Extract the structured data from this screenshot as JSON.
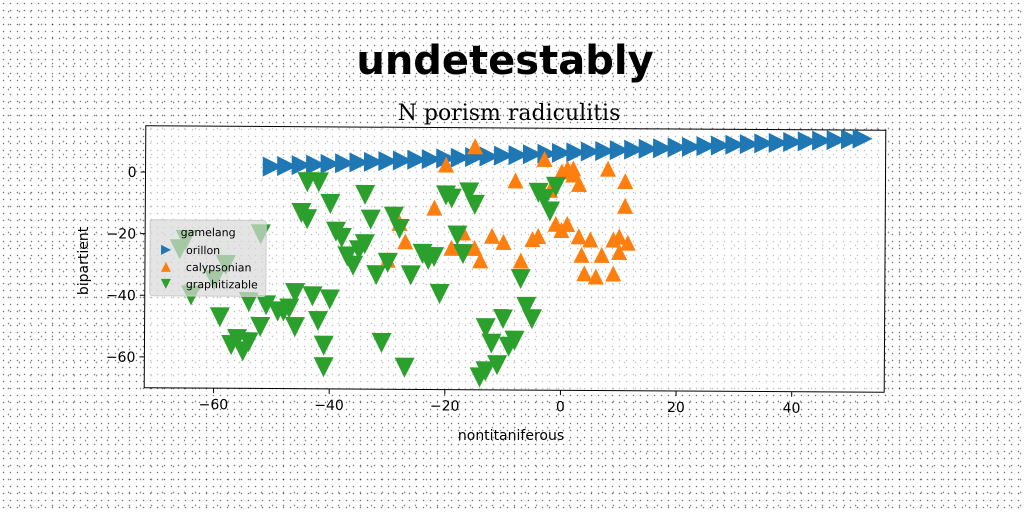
{
  "chart_data": {
    "type": "scatter",
    "suptitle": "undetestably",
    "title": "N porism radiculitis",
    "xlabel": "nontitaniferous",
    "ylabel": "bipartient",
    "xlim": [
      -72,
      56
    ],
    "ylim": [
      -70,
      15
    ],
    "xticks": [
      -60,
      -40,
      -20,
      0,
      20,
      40
    ],
    "yticks": [
      -60,
      -40,
      -20,
      0
    ],
    "grid": false,
    "legend": {
      "title": "gamelang",
      "placement": "center-left"
    },
    "series": [
      {
        "name": "orillon",
        "marker": "triangle-right",
        "color": "#1f77b4",
        "x": [
          -50,
          -47.5,
          -45,
          -42.5,
          -40,
          -37.5,
          -35,
          -32.5,
          -30,
          -27.5,
          -25,
          -22.5,
          -20,
          -17.5,
          -15,
          -12.5,
          -10,
          -7.5,
          -5,
          -2.5,
          0,
          2.5,
          5,
          7.5,
          10,
          12.5,
          15,
          17.5,
          20,
          22.5,
          25,
          27.5,
          30,
          32.5,
          35,
          37.5,
          40,
          42.5,
          45,
          47.5,
          50,
          52
        ],
        "y": [
          2.0,
          2.2,
          2.5,
          2.7,
          3.0,
          3.2,
          3.5,
          3.7,
          4.0,
          4.2,
          4.5,
          4.7,
          5.0,
          5.2,
          5.5,
          5.7,
          6.0,
          6.2,
          6.5,
          6.7,
          7.0,
          7.2,
          7.5,
          7.7,
          8.0,
          8.2,
          8.5,
          8.7,
          9.0,
          9.2,
          9.5,
          9.7,
          10.0,
          10.2,
          10.5,
          10.7,
          11.0,
          11.2,
          11.5,
          11.7,
          12.0,
          12.2
        ]
      },
      {
        "name": "calypsonian",
        "marker": "triangle-up",
        "color": "#ff7f0e",
        "x": [
          -15,
          -28,
          -27,
          -22,
          -19,
          -17,
          -15,
          -12,
          -10,
          -8,
          -7,
          -5,
          -4,
          -2,
          -1,
          0,
          0,
          1,
          1,
          2,
          3,
          3,
          3.5,
          4,
          5,
          6,
          7,
          8,
          9,
          9,
          10,
          10,
          11,
          11,
          11.5,
          -30,
          -20,
          -14,
          2,
          -3
        ],
        "y": [
          9,
          -16,
          -22,
          -11,
          -24,
          -19,
          -24,
          -20,
          -22,
          -2,
          -28,
          -21,
          -20,
          -5,
          -16,
          1,
          -18,
          2,
          -16,
          0,
          -20,
          -3,
          -26,
          -32,
          -21,
          -33,
          -26,
          2,
          -32,
          -21,
          -25,
          -20,
          -2,
          -10,
          -22,
          -28,
          3,
          -28,
          2,
          5
        ]
      },
      {
        "name": "graphitizable",
        "marker": "triangle-down",
        "color": "#2ca02c",
        "x": [
          -66,
          -64,
          -59,
          -57,
          -56,
          -55,
          -54,
          -52,
          -51,
          -49,
          -47,
          -46,
          -45,
          -44,
          -43,
          -42,
          -41,
          -41,
          -40,
          -39,
          -38,
          -37,
          -35,
          -34,
          -33,
          -32,
          -31,
          -30,
          -29,
          -28,
          -27,
          -24,
          -23,
          -22,
          -21,
          -20,
          -19,
          -17,
          -16,
          -15,
          -14,
          -13,
          -12,
          -11,
          -10,
          -9,
          -8,
          -7,
          -6,
          -5,
          -4,
          -3,
          -2,
          -1,
          -60,
          -48,
          -36,
          -44,
          -13,
          -26,
          -18,
          -46,
          -42,
          -54,
          -58,
          -65,
          -52,
          -34,
          -40
        ],
        "y": [
          -25,
          -40,
          -47,
          -56,
          -54,
          -58,
          -55,
          -20,
          -43,
          -45,
          -44,
          -39,
          -13,
          -3,
          -40,
          -48,
          -56,
          -63,
          -41,
          -19,
          -21,
          -27,
          -25,
          -7,
          -15,
          -33,
          -55,
          -29,
          -14,
          -18,
          -63,
          -26,
          -28,
          -27,
          -39,
          -7,
          -8,
          -26,
          -6,
          -10,
          -66,
          -64,
          -55,
          -62,
          -47,
          -56,
          -54,
          -34,
          -43,
          -47,
          -6,
          -8,
          -12,
          -4,
          -35,
          -45,
          -30,
          -15,
          -50,
          -33,
          -20,
          -50,
          -3,
          -42,
          -30,
          -22,
          -50,
          -23,
          -10
        ]
      }
    ]
  }
}
